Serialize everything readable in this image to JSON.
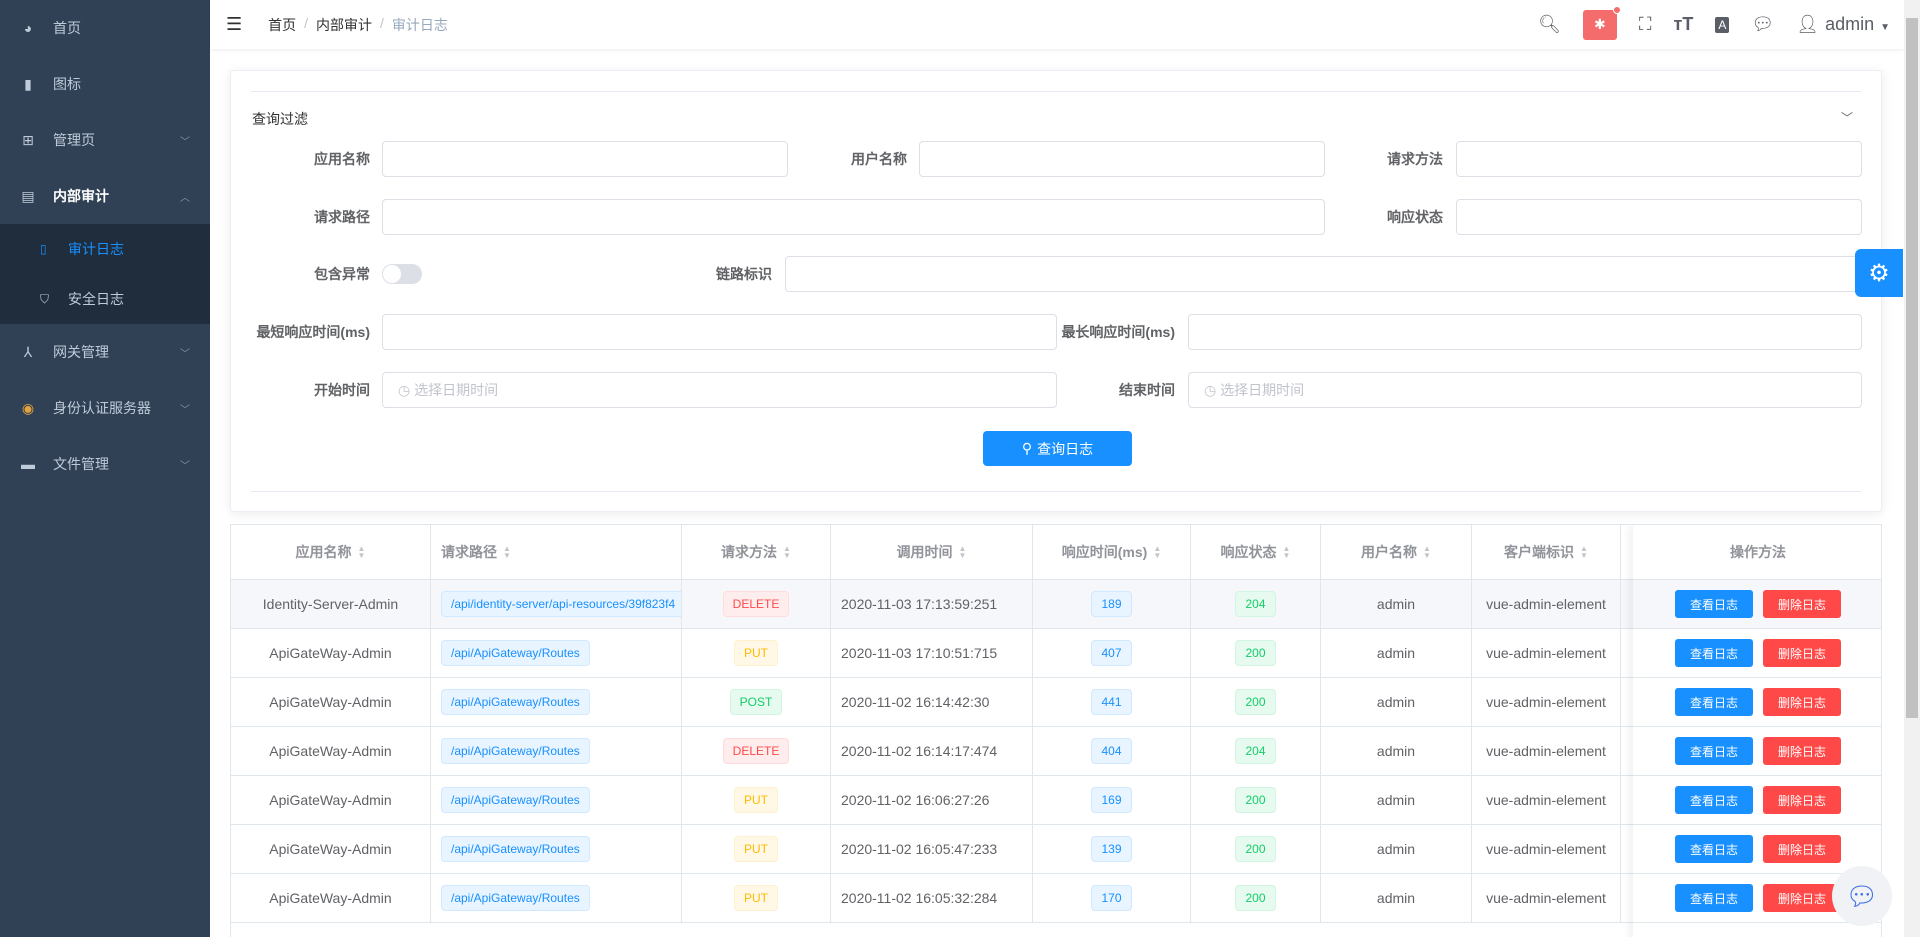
{
  "sidebar": {
    "items": [
      {
        "label": "首页",
        "icon": "dashboard-icon"
      },
      {
        "label": "图标",
        "icon": "icon-icon"
      },
      {
        "label": "管理页",
        "icon": "grid-icon",
        "chevron": "down"
      },
      {
        "label": "内部审计",
        "icon": "audit-icon",
        "chevron": "up",
        "children": [
          {
            "label": "审计日志",
            "icon": "document-icon",
            "active": true
          },
          {
            "label": "安全日志",
            "icon": "shield-icon"
          }
        ]
      },
      {
        "label": "网关管理",
        "icon": "gateway-icon",
        "chevron": "down"
      },
      {
        "label": "身份认证服务器",
        "icon": "identity-icon",
        "chevron": "down"
      },
      {
        "label": "文件管理",
        "icon": "folder-icon",
        "chevron": "down"
      }
    ]
  },
  "header": {
    "breadcrumb": [
      "首页",
      "内部审计",
      "审计日志"
    ],
    "user": "admin"
  },
  "filter": {
    "title": "查询过滤",
    "app_name": {
      "label": "应用名称",
      "value": ""
    },
    "user_name": {
      "label": "用户名称",
      "value": ""
    },
    "method": {
      "label": "请求方法",
      "value": ""
    },
    "path": {
      "label": "请求路径",
      "value": ""
    },
    "status": {
      "label": "响应状态",
      "value": ""
    },
    "has_exception": {
      "label": "包含异常",
      "on": false
    },
    "trace": {
      "label": "链路标识",
      "value": ""
    },
    "min_time": {
      "label": "最短响应时间(ms)",
      "value": ""
    },
    "max_time": {
      "label": "最长响应时间(ms)",
      "value": ""
    },
    "start": {
      "label": "开始时间",
      "placeholder": "选择日期时间"
    },
    "end": {
      "label": "结束时间",
      "placeholder": "选择日期时间"
    },
    "search_label": "查询日志"
  },
  "table": {
    "columns": [
      "应用名称",
      "请求路径",
      "请求方法",
      "调用时间",
      "响应时间(ms)",
      "响应状态",
      "用户名称",
      "客户端标识"
    ],
    "action_column": "操作方法",
    "view_label": "查看日志",
    "delete_label": "删除日志",
    "rows": [
      {
        "app": "Identity-Server-Admin",
        "path": "/api/identity-server/api-resources/39f823f4",
        "method": "DELETE",
        "time": "2020-11-03 17:13:59:251",
        "ms": "189",
        "status": "204",
        "user": "admin",
        "client": "vue-admin-element"
      },
      {
        "app": "ApiGateWay-Admin",
        "path": "/api/ApiGateway/Routes",
        "method": "PUT",
        "time": "2020-11-03 17:10:51:715",
        "ms": "407",
        "status": "200",
        "user": "admin",
        "client": "vue-admin-element"
      },
      {
        "app": "ApiGateWay-Admin",
        "path": "/api/ApiGateway/Routes",
        "method": "POST",
        "time": "2020-11-02 16:14:42:30",
        "ms": "441",
        "status": "200",
        "user": "admin",
        "client": "vue-admin-element"
      },
      {
        "app": "ApiGateWay-Admin",
        "path": "/api/ApiGateway/Routes",
        "method": "DELETE",
        "time": "2020-11-02 16:14:17:474",
        "ms": "404",
        "status": "204",
        "user": "admin",
        "client": "vue-admin-element"
      },
      {
        "app": "ApiGateWay-Admin",
        "path": "/api/ApiGateway/Routes",
        "method": "PUT",
        "time": "2020-11-02 16:06:27:26",
        "ms": "169",
        "status": "200",
        "user": "admin",
        "client": "vue-admin-element"
      },
      {
        "app": "ApiGateWay-Admin",
        "path": "/api/ApiGateway/Routes",
        "method": "PUT",
        "time": "2020-11-02 16:05:47:233",
        "ms": "139",
        "status": "200",
        "user": "admin",
        "client": "vue-admin-element"
      },
      {
        "app": "ApiGateWay-Admin",
        "path": "/api/ApiGateway/Routes",
        "method": "PUT",
        "time": "2020-11-02 16:05:32:284",
        "ms": "170",
        "status": "200",
        "user": "admin",
        "client": "vue-admin-element"
      }
    ]
  },
  "colors": {
    "sidebar": "#304156",
    "submenu": "#1f2d3d",
    "primary": "#1890ff",
    "danger": "#ff4949"
  }
}
